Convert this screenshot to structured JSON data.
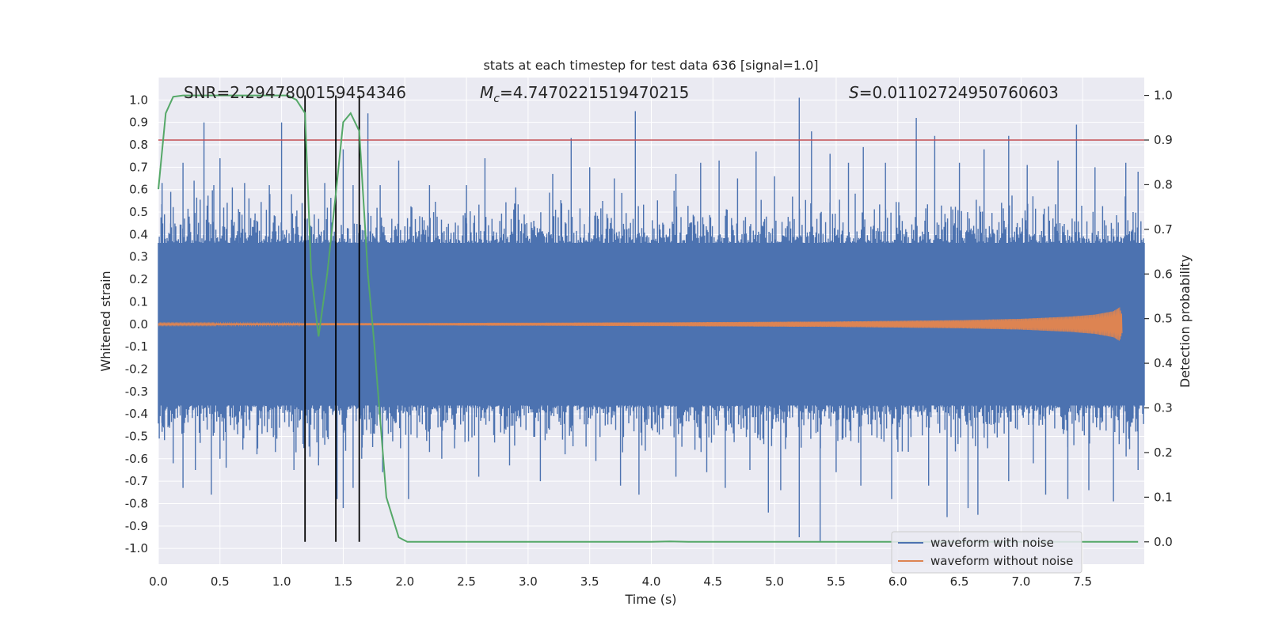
{
  "chart_data": {
    "type": "line",
    "title": "stats at each timestep for test data 636 [signal=1.0]",
    "xlabel": "Time (s)",
    "ylabel": "Whitened strain",
    "y2label": "Detection probability",
    "xlim": [
      0.0,
      8.0
    ],
    "ylim": [
      -1.07,
      1.1
    ],
    "y2lim": [
      -0.05,
      1.04
    ],
    "xticks": [
      "0.0",
      "0.5",
      "1.0",
      "1.5",
      "2.0",
      "2.5",
      "3.0",
      "3.5",
      "4.0",
      "4.5",
      "5.0",
      "5.5",
      "6.0",
      "6.5",
      "7.0",
      "7.5"
    ],
    "yticks": [
      "1.0",
      "0.9",
      "0.8",
      "0.7",
      "0.6",
      "0.5",
      "0.4",
      "0.3",
      "0.2",
      "0.1",
      "0.0",
      "-0.1",
      "-0.2",
      "-0.3",
      "-0.4",
      "-0.5",
      "-0.6",
      "-0.7",
      "-0.8",
      "-0.9",
      "-1.0"
    ],
    "y2ticks": [
      "1.0",
      "0.9",
      "0.8",
      "0.7",
      "0.6",
      "0.5",
      "0.4",
      "0.3",
      "0.2",
      "0.1",
      "0.0"
    ],
    "annotations": {
      "snr_label": "SNR=2.2947800159454346",
      "mc_symbol": "M",
      "mc_sub": "c",
      "mc_value": "=4.7470221519470215",
      "s_symbol": "S",
      "s_value": "=0.01102724950760603"
    },
    "threshold": {
      "y2": 0.9,
      "color": "#c44e52"
    },
    "vlines_x": [
      1.19,
      1.44,
      1.63
    ],
    "series": [
      {
        "name": "waveform with noise",
        "color": "#4c72b0",
        "axis": "left",
        "band_core": 0.36,
        "band_max": 0.6,
        "spikes": [
          [
            0.03,
            0.63
          ],
          [
            0.1,
            0.59
          ],
          [
            0.2,
            0.72
          ],
          [
            0.25,
            0.48
          ],
          [
            0.29,
            0.64
          ],
          [
            0.37,
            0.9
          ],
          [
            0.45,
            0.62
          ],
          [
            0.5,
            0.74
          ],
          [
            0.6,
            0.61
          ],
          [
            0.66,
            0.5
          ],
          [
            0.7,
            0.63
          ],
          [
            0.9,
            0.62
          ],
          [
            1.0,
            0.9
          ],
          [
            1.08,
            0.58
          ],
          [
            1.35,
            0.63
          ],
          [
            1.5,
            0.78
          ],
          [
            1.58,
            0.62
          ],
          [
            1.7,
            0.94
          ],
          [
            1.8,
            0.62
          ],
          [
            1.95,
            0.73
          ],
          [
            2.2,
            0.62
          ],
          [
            2.5,
            0.62
          ],
          [
            2.65,
            0.74
          ],
          [
            2.9,
            0.61
          ],
          [
            3.2,
            0.67
          ],
          [
            3.35,
            0.83
          ],
          [
            3.5,
            0.7
          ],
          [
            3.7,
            0.65
          ],
          [
            3.87,
            0.95
          ],
          [
            4.2,
            0.67
          ],
          [
            4.4,
            0.72
          ],
          [
            4.55,
            0.73
          ],
          [
            4.7,
            0.65
          ],
          [
            4.85,
            0.77
          ],
          [
            5.0,
            0.66
          ],
          [
            5.2,
            1.01
          ],
          [
            5.3,
            0.86
          ],
          [
            5.45,
            0.76
          ],
          [
            5.6,
            0.72
          ],
          [
            5.72,
            0.79
          ],
          [
            5.9,
            0.72
          ],
          [
            6.15,
            0.92
          ],
          [
            6.3,
            0.84
          ],
          [
            6.5,
            0.72
          ],
          [
            6.7,
            0.78
          ],
          [
            6.9,
            0.84
          ],
          [
            7.05,
            0.71
          ],
          [
            7.3,
            0.73
          ],
          [
            7.45,
            0.89
          ],
          [
            7.6,
            0.7
          ],
          [
            7.85,
            0.72
          ],
          [
            7.95,
            0.68
          ]
        ],
        "dips": [
          [
            0.03,
            -0.48
          ],
          [
            0.12,
            -0.62
          ],
          [
            0.2,
            -0.73
          ],
          [
            0.3,
            -0.65
          ],
          [
            0.43,
            -0.76
          ],
          [
            0.5,
            -0.6
          ],
          [
            0.55,
            -0.64
          ],
          [
            0.8,
            -0.58
          ],
          [
            0.95,
            -0.57
          ],
          [
            1.1,
            -0.65
          ],
          [
            1.3,
            -0.63
          ],
          [
            1.45,
            -0.78
          ],
          [
            1.5,
            -0.82
          ],
          [
            1.58,
            -0.73
          ],
          [
            1.65,
            -0.6
          ],
          [
            1.82,
            -0.66
          ],
          [
            2.03,
            -0.78
          ],
          [
            2.2,
            -0.57
          ],
          [
            2.3,
            -0.6
          ],
          [
            2.6,
            -0.68
          ],
          [
            2.85,
            -0.63
          ],
          [
            3.1,
            -0.7
          ],
          [
            3.3,
            -0.58
          ],
          [
            3.55,
            -0.61
          ],
          [
            3.75,
            -0.72
          ],
          [
            3.9,
            -0.76
          ],
          [
            4.2,
            -0.68
          ],
          [
            4.45,
            -0.66
          ],
          [
            4.6,
            -0.73
          ],
          [
            4.8,
            -0.65
          ],
          [
            4.95,
            -0.84
          ],
          [
            5.05,
            -0.74
          ],
          [
            5.2,
            -0.95
          ],
          [
            5.37,
            -0.97
          ],
          [
            5.5,
            -0.66
          ],
          [
            5.7,
            -0.72
          ],
          [
            5.95,
            -0.78
          ],
          [
            6.25,
            -0.72
          ],
          [
            6.4,
            -0.86
          ],
          [
            6.57,
            -0.82
          ],
          [
            6.65,
            -0.85
          ],
          [
            6.9,
            -0.7
          ],
          [
            7.1,
            -0.62
          ],
          [
            7.2,
            -0.76
          ],
          [
            7.38,
            -0.78
          ],
          [
            7.55,
            -0.74
          ],
          [
            7.75,
            -0.79
          ],
          [
            7.95,
            -0.65
          ]
        ]
      },
      {
        "name": "waveform without noise",
        "color": "#dd8452",
        "axis": "left",
        "envelope": [
          [
            0.0,
            0.004
          ],
          [
            2.0,
            0.005
          ],
          [
            4.0,
            0.008
          ],
          [
            5.5,
            0.012
          ],
          [
            6.5,
            0.018
          ],
          [
            7.0,
            0.024
          ],
          [
            7.4,
            0.034
          ],
          [
            7.6,
            0.043
          ],
          [
            7.75,
            0.058
          ],
          [
            7.8,
            0.075
          ],
          [
            7.82,
            0.04
          ]
        ]
      },
      {
        "name": "detection probability",
        "color": "#55a868",
        "axis": "right",
        "x": [
          0.0,
          0.06,
          0.12,
          0.2,
          0.3,
          1.05,
          1.12,
          1.19,
          1.24,
          1.3,
          1.37,
          1.44,
          1.5,
          1.56,
          1.63,
          1.7,
          1.75,
          1.85,
          1.95,
          2.02,
          2.2,
          4.0,
          4.15,
          4.3,
          7.5,
          7.95
        ],
        "y": [
          0.79,
          0.96,
          0.997,
          1.0,
          1.0,
          1.0,
          0.99,
          0.96,
          0.6,
          0.46,
          0.6,
          0.78,
          0.94,
          0.96,
          0.92,
          0.6,
          0.45,
          0.1,
          0.01,
          0.0,
          0.0,
          0.0,
          0.001,
          0.0,
          0.0,
          0.0
        ]
      }
    ],
    "legend": {
      "position": "lower-right",
      "entries": [
        {
          "label": "waveform with noise",
          "color": "#4c72b0"
        },
        {
          "label": "waveform without noise",
          "color": "#dd8452"
        }
      ]
    },
    "colors": {
      "plot_bg": "#eaeaf2",
      "grid": "#ffffff",
      "text": "#262626",
      "vline": "#000000"
    }
  }
}
